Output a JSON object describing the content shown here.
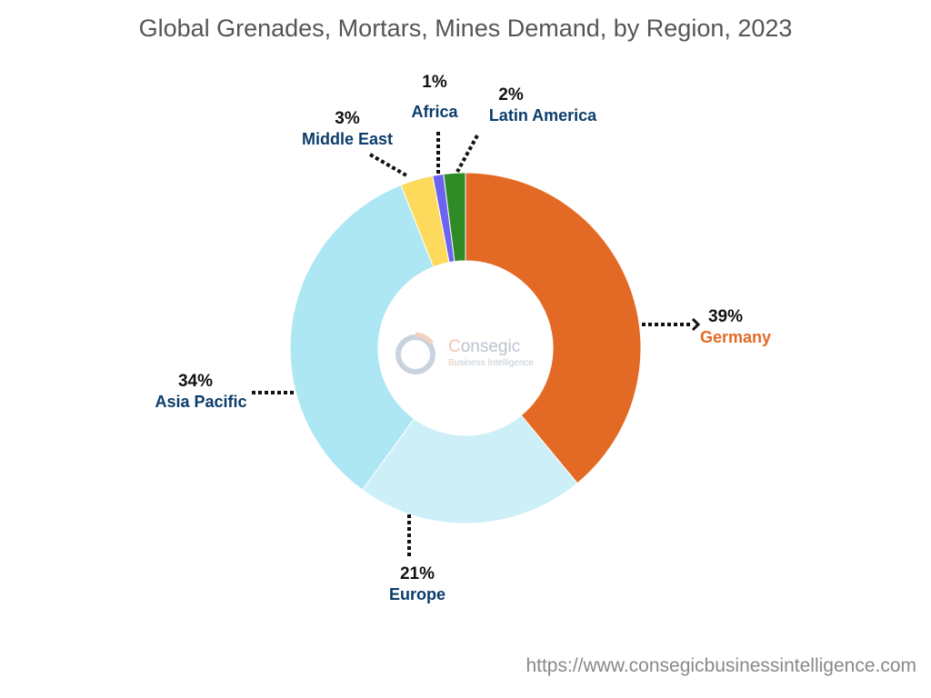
{
  "chart_data": {
    "type": "pie",
    "variant": "donut",
    "title": "Global Grenades, Mortars, Mines Demand, by Region, 2023",
    "slices": [
      {
        "label": "Germany",
        "value": 39,
        "display": "39%",
        "color": "#E36A25",
        "label_color": "#E36A25"
      },
      {
        "label": "Europe",
        "value": 21,
        "display": "21%",
        "color": "#CDEFF7",
        "label_color": "#0B3C6B"
      },
      {
        "label": "Asia Pacific",
        "value": 34,
        "display": "34%",
        "color": "#ADE7F3",
        "label_color": "#0B3C6B"
      },
      {
        "label": "Middle East",
        "value": 3,
        "display": "3%",
        "color": "#FDD95C",
        "label_color": "#0B3C6B"
      },
      {
        "label": "Africa",
        "value": 1,
        "display": "1%",
        "color": "#6C63F0",
        "label_color": "#0B3C6B"
      },
      {
        "label": "Latin America",
        "value": 2,
        "display": "2%",
        "color": "#2E8B25",
        "label_color": "#0B3C6B"
      }
    ],
    "start_angle": "12 o'clock",
    "direction": "clockwise",
    "legend": "none"
  },
  "logo": {
    "name": "Consegic",
    "tagline": "Business Intelligence"
  },
  "footer": {
    "url": "https://www.consegicbusinessintelligence.com"
  }
}
